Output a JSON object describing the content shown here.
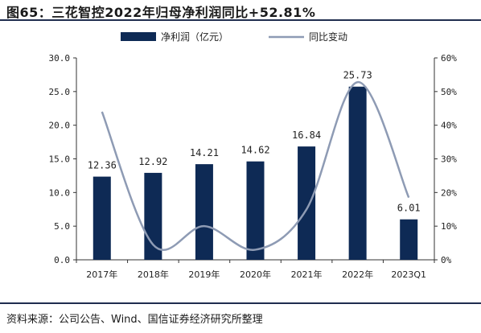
{
  "title": "图65：三花智控2022年归母净利润同比+52.81%",
  "source": "资料来源：公司公告、Wind、国信证券经济研究所整理",
  "colors": {
    "bar": "#0e2a55",
    "line": "#8e9bb4",
    "rule": "#1f2d4f"
  },
  "chart_data": {
    "type": "bar",
    "categories": [
      "2017年",
      "2018年",
      "2019年",
      "2020年",
      "2021年",
      "2022年",
      "2023Q1"
    ],
    "series": [
      {
        "name": "净利润（亿元）",
        "type": "bar",
        "axis": "left",
        "values": [
          12.36,
          12.92,
          14.21,
          14.62,
          16.84,
          25.73,
          6.01
        ],
        "labels": [
          "12.36",
          "12.92",
          "14.21",
          "14.62",
          "16.84",
          "25.73",
          "6.01"
        ]
      },
      {
        "name": "同比变动",
        "type": "line",
        "axis": "right",
        "values": [
          0.44,
          0.045,
          0.1,
          0.03,
          0.15,
          0.5281,
          0.185
        ]
      }
    ],
    "y_left": {
      "min": 0,
      "max": 30,
      "ticks": [
        "0.0",
        "5.0",
        "10.0",
        "15.0",
        "20.0",
        "25.0",
        "30.0"
      ]
    },
    "y_right": {
      "min": 0,
      "max": 0.6,
      "ticks": [
        "0%",
        "10%",
        "20%",
        "30%",
        "40%",
        "50%",
        "60%"
      ]
    },
    "legend_position": "top",
    "grid": false
  }
}
